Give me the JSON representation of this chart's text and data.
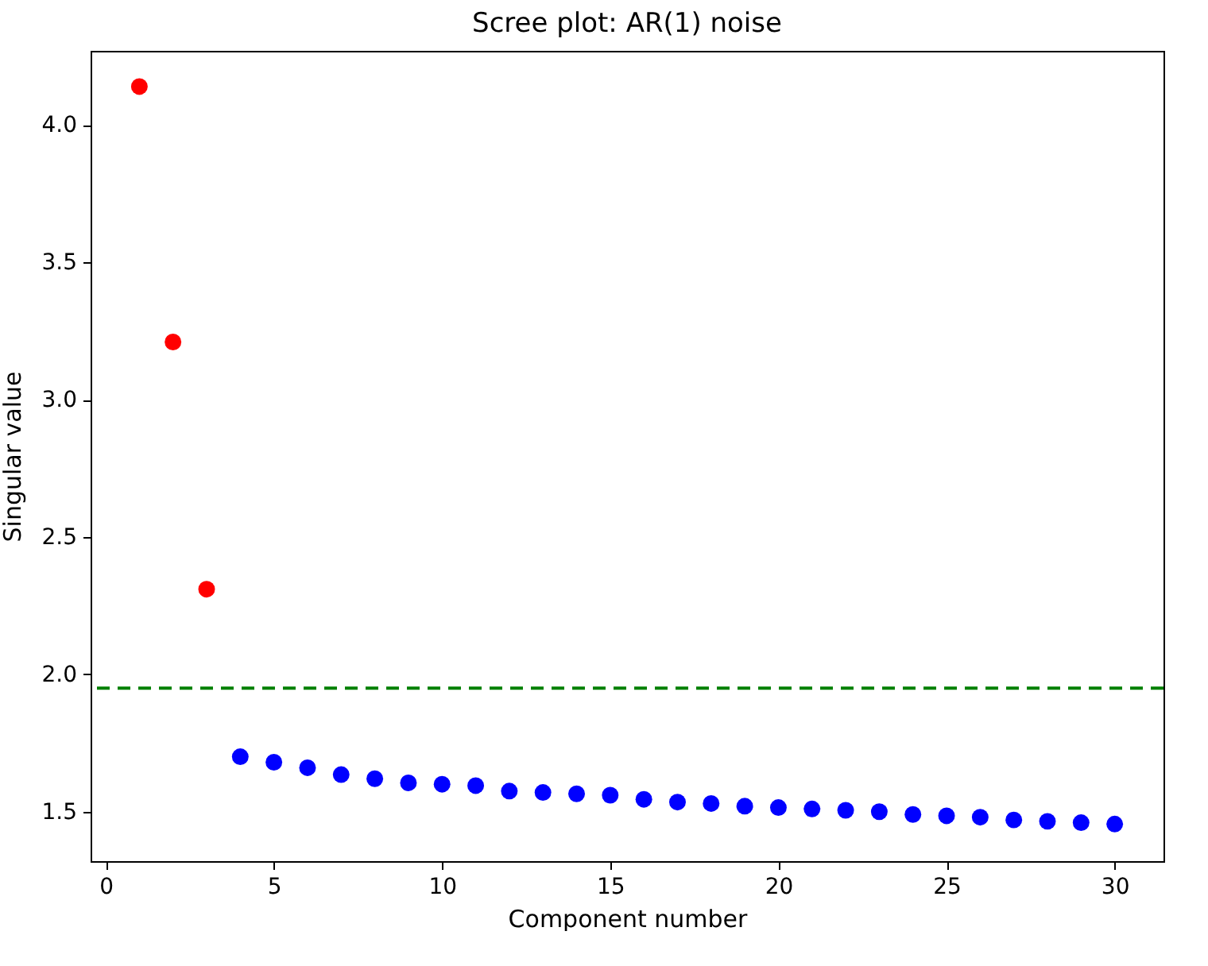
{
  "chart_data": {
    "type": "scatter",
    "title": "Scree plot: AR(1) noise",
    "xlabel": "Component number",
    "ylabel": "Singular value",
    "series": [
      {
        "color": "#ff0000",
        "x": [
          1,
          2,
          3
        ],
        "values": [
          4.14,
          3.21,
          2.31
        ]
      },
      {
        "color": "#0000ff",
        "x": [
          4,
          5,
          6,
          7,
          8,
          9,
          10,
          11,
          12,
          13,
          14,
          15,
          16,
          17,
          18,
          19,
          20,
          21,
          22,
          23,
          24,
          25,
          26,
          27,
          28,
          29,
          30
        ],
        "values": [
          1.7,
          1.68,
          1.66,
          1.635,
          1.62,
          1.605,
          1.6,
          1.595,
          1.575,
          1.57,
          1.565,
          1.56,
          1.545,
          1.535,
          1.53,
          1.52,
          1.515,
          1.51,
          1.505,
          1.5,
          1.49,
          1.485,
          1.48,
          1.47,
          1.465,
          1.46,
          1.455
        ]
      }
    ],
    "ref_lines": [
      {
        "axis": "y",
        "value": 1.95,
        "color": "#008000",
        "line_style": "dashed"
      }
    ],
    "xlim": [
      -0.45,
      31.45
    ],
    "xticks": [
      0,
      5,
      10,
      15,
      20,
      25,
      30
    ],
    "ylim": [
      1.32,
      4.27
    ],
    "yticks": [
      1.5,
      {
        "value": 2,
        "label": "2.0"
      },
      2.5,
      {
        "value": 3,
        "label": "3.0"
      },
      3.5,
      {
        "value": 4,
        "label": "4.0"
      }
    ],
    "marker": "circle",
    "grid": false,
    "legend": false
  }
}
